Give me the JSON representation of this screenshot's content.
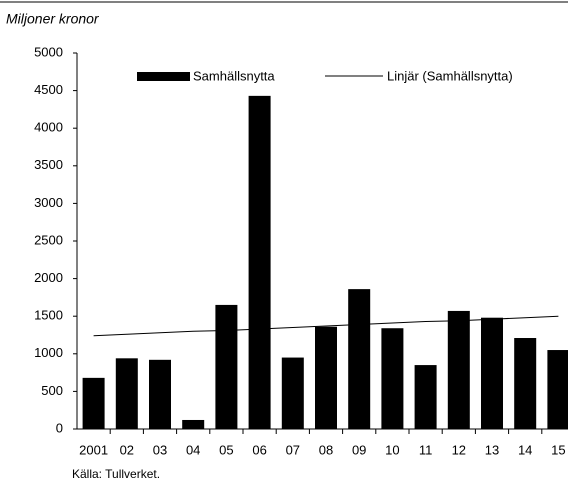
{
  "chart_data": {
    "type": "bar",
    "y_axis_label": "Miljoner kronor",
    "source": "Källa: Tullverket.",
    "categories": [
      "2001",
      "02",
      "03",
      "04",
      "05",
      "06",
      "07",
      "08",
      "09",
      "10",
      "11",
      "12",
      "13",
      "14",
      "15"
    ],
    "series": [
      {
        "name": "Samhällsnytta",
        "color": "#000000",
        "kind": "bar",
        "values": [
          680,
          940,
          920,
          120,
          1650,
          4430,
          950,
          1360,
          1860,
          1340,
          850,
          1570,
          1480,
          1210,
          1050
        ]
      },
      {
        "name": "Linjär (Samhällsnytta)",
        "color": "#000000",
        "kind": "line",
        "values": [
          1240,
          1260,
          1280,
          1300,
          1310,
          1330,
          1350,
          1370,
          1390,
          1410,
          1430,
          1440,
          1460,
          1480,
          1500
        ]
      }
    ],
    "ylim": [
      0,
      5000
    ],
    "yticks": [
      0,
      500,
      1000,
      1500,
      2000,
      2500,
      3000,
      3500,
      4000,
      4500,
      5000
    ],
    "grid": false
  }
}
